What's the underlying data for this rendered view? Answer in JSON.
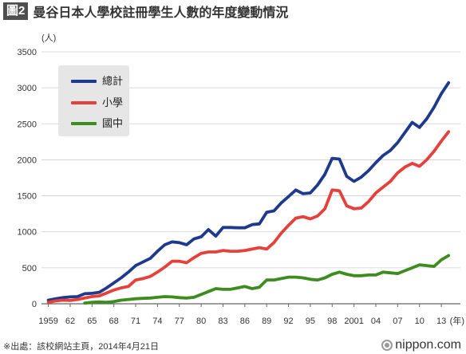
{
  "figure": {
    "badge": "圖2"
  },
  "style": {
    "badge_bg": "#4f4f4f",
    "legend_bg": "#e6e6e6",
    "grid": "#cfcfcf",
    "axis": "#666666"
  },
  "chart_data": {
    "type": "line",
    "title": "曼谷日本人學校註冊學生人數的年度變動情況",
    "ylabel": "(人)",
    "xlabel": "(年)",
    "xlim": [
      1959,
      2014
    ],
    "ylim": [
      0,
      3500
    ],
    "yticks": [
      0,
      500,
      1000,
      1500,
      2000,
      2500,
      3000,
      3500
    ],
    "xticks": [
      {
        "value": 1959,
        "label": "1959"
      },
      {
        "value": 1962,
        "label": "62"
      },
      {
        "value": 1965,
        "label": "65"
      },
      {
        "value": 1968,
        "label": "68"
      },
      {
        "value": 1971,
        "label": "71"
      },
      {
        "value": 1974,
        "label": "74"
      },
      {
        "value": 1977,
        "label": "77"
      },
      {
        "value": 1980,
        "label": "80"
      },
      {
        "value": 1983,
        "label": "83"
      },
      {
        "value": 1986,
        "label": "86"
      },
      {
        "value": 1989,
        "label": "89"
      },
      {
        "value": 1992,
        "label": "92"
      },
      {
        "value": 1995,
        "label": "95"
      },
      {
        "value": 1998,
        "label": "98"
      },
      {
        "value": 2001,
        "label": "2001"
      },
      {
        "value": 2004,
        "label": "04"
      },
      {
        "value": 2007,
        "label": "07"
      },
      {
        "value": 2010,
        "label": "10"
      },
      {
        "value": 2013,
        "label": "13"
      }
    ],
    "grid": true,
    "legend": "top-left",
    "x": [
      1959,
      1960,
      1961,
      1962,
      1963,
      1964,
      1965,
      1966,
      1967,
      1968,
      1969,
      1970,
      1971,
      1972,
      1973,
      1974,
      1975,
      1976,
      1977,
      1978,
      1979,
      1980,
      1981,
      1982,
      1983,
      1984,
      1985,
      1986,
      1987,
      1988,
      1989,
      1990,
      1991,
      1992,
      1993,
      1994,
      1995,
      1996,
      1997,
      1998,
      1999,
      2000,
      2001,
      2002,
      2003,
      2004,
      2005,
      2006,
      2007,
      2008,
      2009,
      2010,
      2011,
      2012,
      2013,
      2014
    ],
    "series": [
      {
        "name": "總計",
        "color": "#1d3a8c",
        "values": [
          50,
          70,
          85,
          95,
          100,
          140,
          145,
          160,
          220,
          290,
          360,
          440,
          530,
          580,
          630,
          730,
          820,
          860,
          850,
          820,
          900,
          930,
          1030,
          940,
          1060,
          1060,
          1055,
          1055,
          1100,
          1110,
          1270,
          1290,
          1400,
          1490,
          1580,
          1530,
          1540,
          1650,
          1800,
          2020,
          2010,
          1770,
          1700,
          1760,
          1850,
          1960,
          2060,
          2130,
          2240,
          2380,
          2520,
          2450,
          2570,
          2730,
          2920,
          3070
        ]
      },
      {
        "name": "小學",
        "color": "#e6403b",
        "values": [
          20,
          40,
          50,
          45,
          60,
          80,
          100,
          110,
          150,
          190,
          220,
          240,
          330,
          350,
          380,
          440,
          510,
          590,
          590,
          570,
          640,
          700,
          720,
          720,
          740,
          730,
          730,
          740,
          760,
          780,
          760,
          850,
          980,
          1090,
          1190,
          1210,
          1180,
          1220,
          1320,
          1580,
          1570,
          1360,
          1320,
          1330,
          1420,
          1540,
          1620,
          1700,
          1820,
          1900,
          1950,
          1910,
          2000,
          2120,
          2260,
          2390
        ]
      },
      {
        "name": "國中",
        "color": "#3c8c1e",
        "values": [
          null,
          null,
          null,
          null,
          null,
          10,
          20,
          25,
          20,
          30,
          50,
          60,
          70,
          75,
          80,
          90,
          100,
          95,
          85,
          80,
          90,
          130,
          170,
          210,
          200,
          200,
          220,
          240,
          210,
          230,
          330,
          330,
          350,
          370,
          370,
          360,
          340,
          330,
          360,
          410,
          440,
          410,
          390,
          390,
          400,
          400,
          440,
          430,
          420,
          460,
          500,
          540,
          530,
          520,
          610,
          670
        ]
      }
    ]
  },
  "footer": {
    "source": "※出處：該校網站主頁，2014年4月21日",
    "logo": "nippon.com"
  }
}
